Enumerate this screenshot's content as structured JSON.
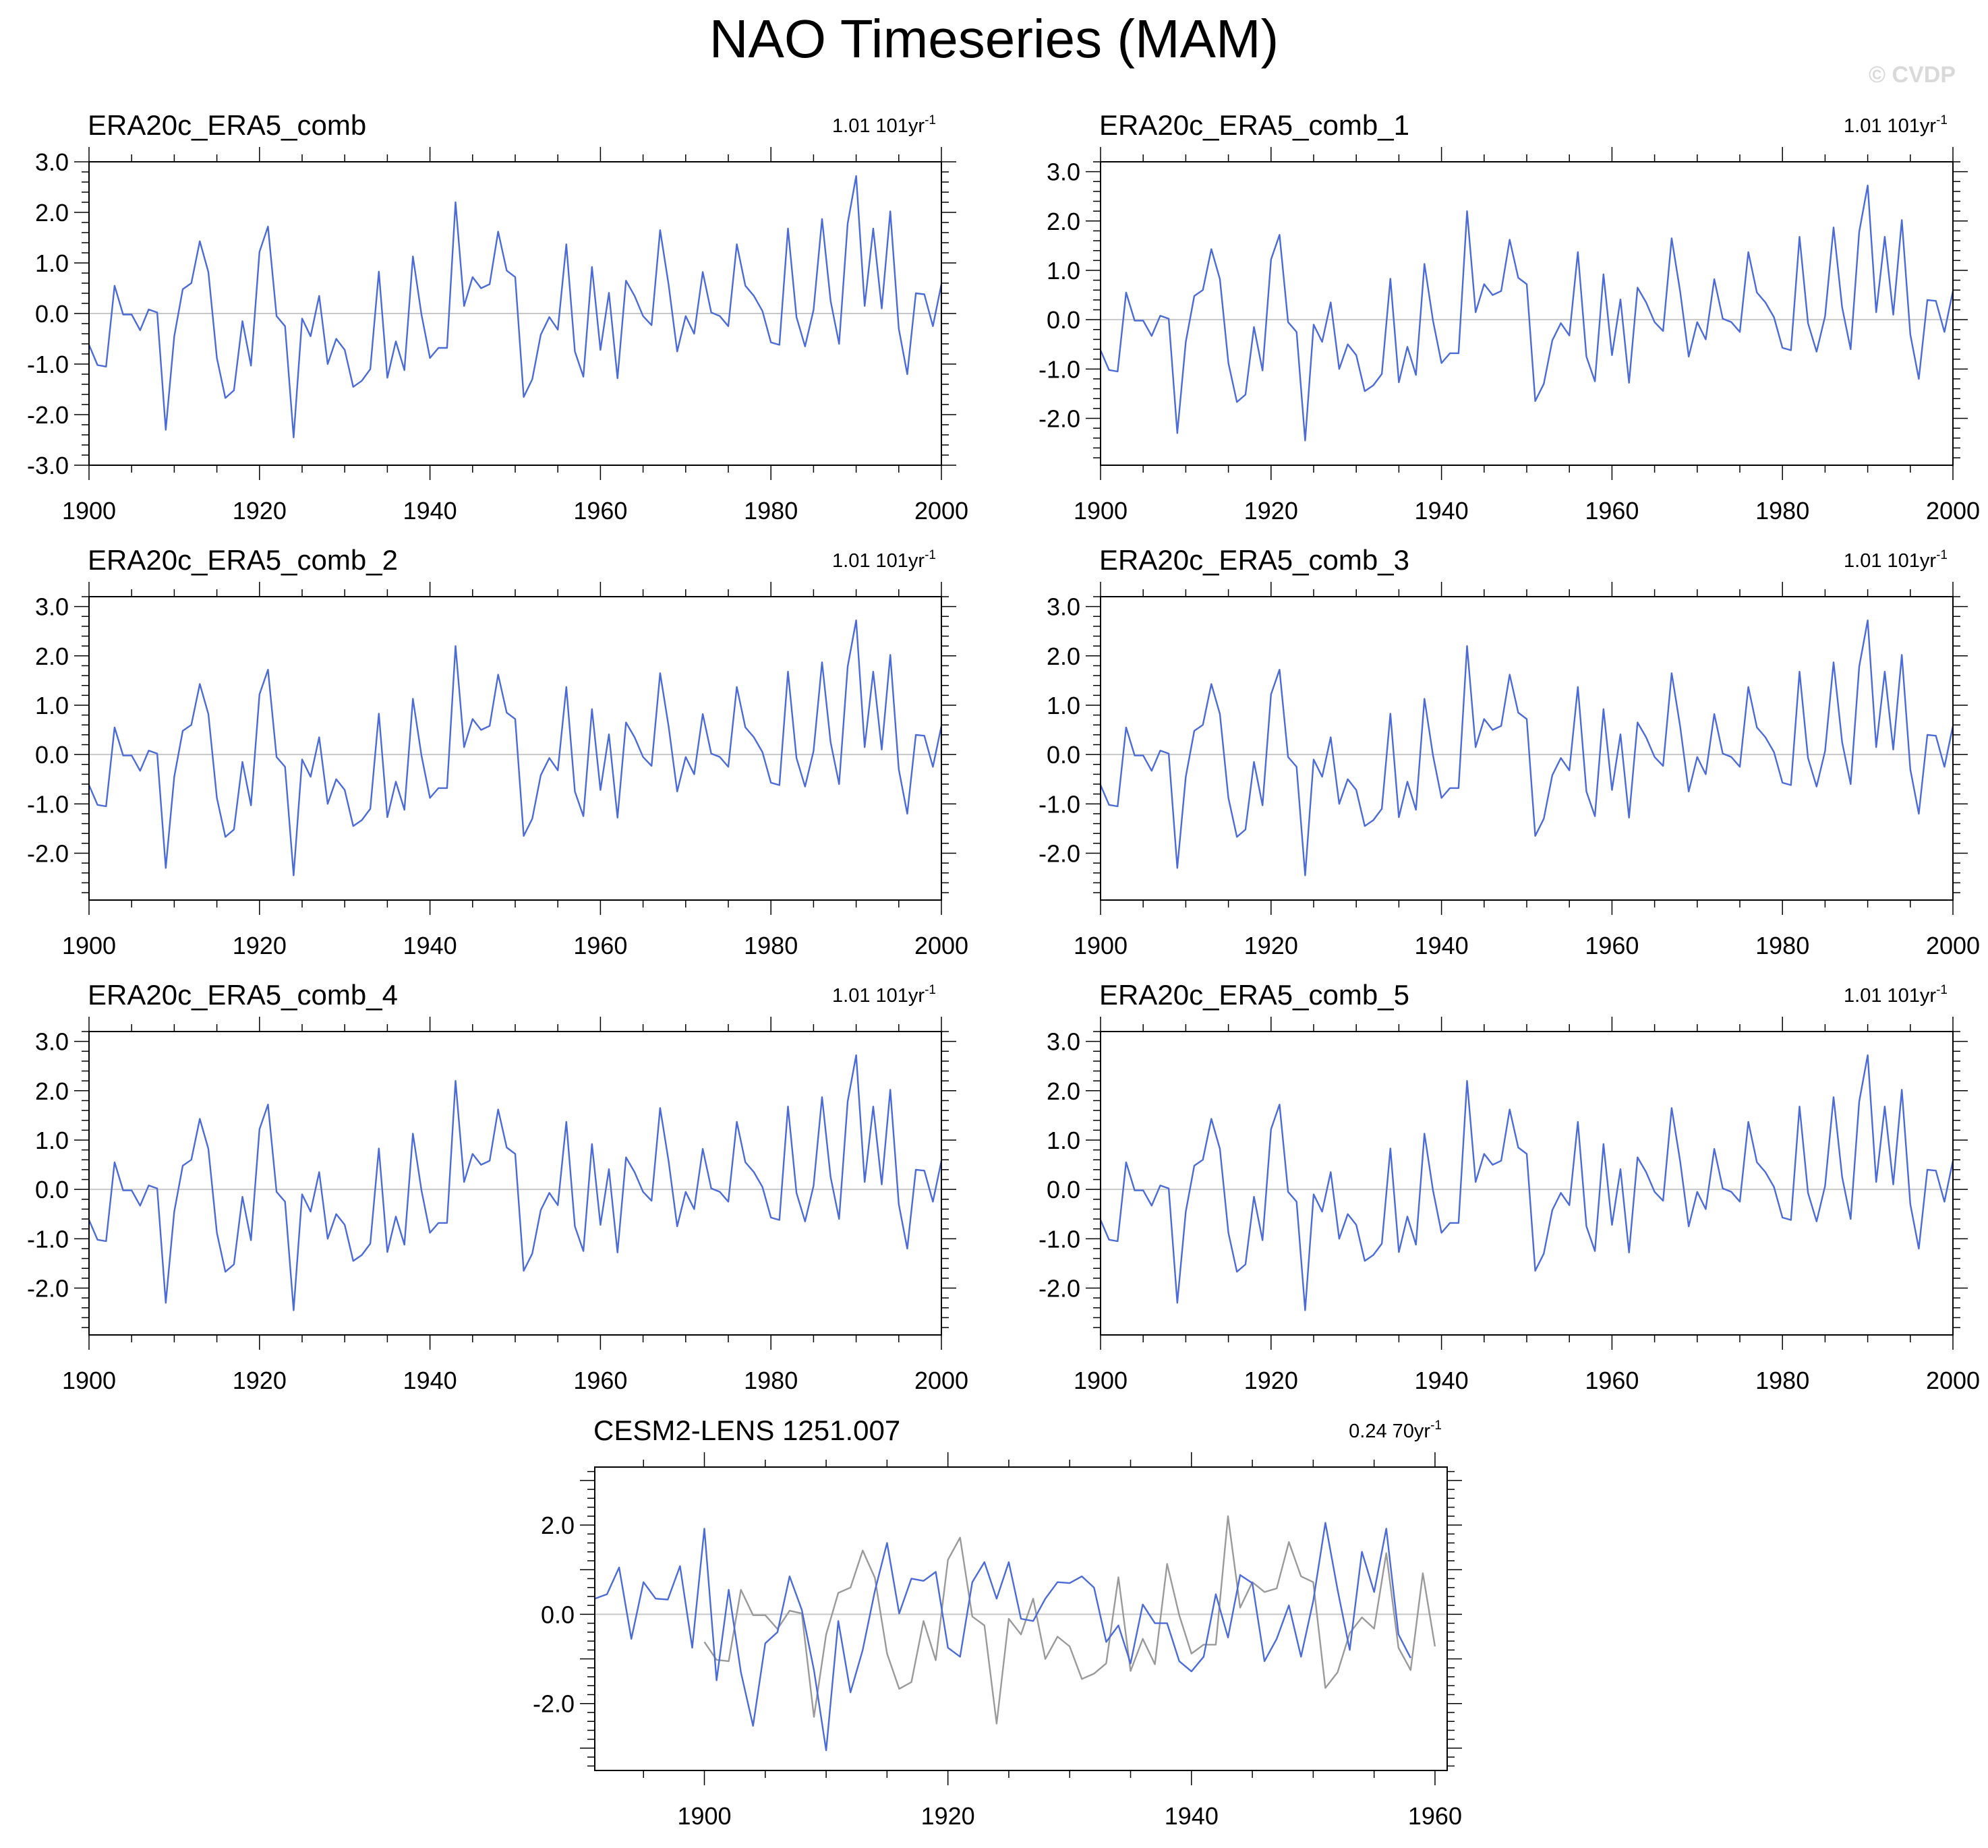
{
  "title": "NAO Timeseries (MAM)",
  "watermark": "© CVDP",
  "colors": {
    "series": "#4a6bd8",
    "reference": "#9a9a9a",
    "zero_line": "#c8c8c8",
    "axis": "#000000"
  },
  "chart_data": [
    {
      "type": "line",
      "title": "ERA20c_ERA5_comb",
      "trend_label": "1.01 101yr",
      "trend_exponent": "-1",
      "xlim": [
        1900,
        2000
      ],
      "ylim": [
        -3.0,
        3.0
      ],
      "xticks": [
        "1900",
        "1920",
        "1940",
        "1960",
        "1980",
        "2000"
      ],
      "yticks": [
        "3.0",
        "2.0",
        "1.0",
        "0.0",
        "-1.0",
        "-2.0",
        "-3.0"
      ],
      "series": [
        {
          "values": [
            -0.62,
            -1.02,
            -1.05,
            0.55,
            -0.02,
            -0.02,
            -0.33,
            0.08,
            0.02,
            -2.3,
            -0.45,
            0.48,
            0.6,
            1.43,
            0.82,
            -0.88,
            -1.67,
            -1.52,
            -0.15,
            -1.03,
            1.22,
            1.72,
            -0.05,
            -0.25,
            -2.45,
            -0.1,
            -0.45,
            0.35,
            -1.0,
            -0.5,
            -0.72,
            -1.45,
            -1.33,
            -1.1,
            0.83,
            -1.27,
            -0.55,
            -1.12,
            1.13,
            -0.02,
            -0.88,
            -0.68,
            -0.68,
            2.2,
            0.15,
            0.72,
            0.5,
            0.58,
            1.62,
            0.85,
            0.72,
            -1.65,
            -1.3,
            -0.42,
            -0.07,
            -0.32,
            1.37,
            -0.75,
            -1.25,
            0.92,
            -0.72,
            0.41,
            -1.28,
            0.65,
            0.35,
            -0.05,
            -0.23,
            1.65,
            0.57,
            -0.75,
            -0.05,
            -0.4,
            0.82,
            0.02,
            -0.05,
            -0.25,
            1.37,
            0.55,
            0.35,
            0.05,
            -0.57,
            -0.62,
            1.68,
            -0.07,
            -0.65,
            0.07,
            1.87,
            0.25,
            -0.6,
            1.78,
            2.72,
            0.15,
            1.68,
            0.1,
            2.02,
            -0.3,
            -1.2,
            0.4,
            0.38,
            -0.25,
            0.58
          ]
        }
      ]
    },
    {
      "type": "line",
      "title": "ERA20c_ERA5_comb_1",
      "trend_label": "1.01 101yr",
      "trend_exponent": "-1",
      "xlim": [
        1900,
        2000
      ],
      "ylim": [
        -3.0,
        3.0
      ],
      "xticks": [
        "1900",
        "1920",
        "1940",
        "1960",
        "1980",
        "2000"
      ],
      "yticks": [
        "3.0",
        "2.0",
        "1.0",
        "0.0",
        "-1.0",
        "-2.0"
      ],
      "series": [
        {
          "values": [
            -0.62,
            -1.02,
            -1.05,
            0.55,
            -0.02,
            -0.02,
            -0.33,
            0.08,
            0.02,
            -2.3,
            -0.45,
            0.48,
            0.6,
            1.43,
            0.82,
            -0.88,
            -1.67,
            -1.52,
            -0.15,
            -1.03,
            1.22,
            1.72,
            -0.05,
            -0.25,
            -2.45,
            -0.1,
            -0.45,
            0.35,
            -1.0,
            -0.5,
            -0.72,
            -1.45,
            -1.33,
            -1.1,
            0.83,
            -1.27,
            -0.55,
            -1.12,
            1.13,
            -0.02,
            -0.88,
            -0.68,
            -0.68,
            2.2,
            0.15,
            0.72,
            0.5,
            0.58,
            1.62,
            0.85,
            0.72,
            -1.65,
            -1.3,
            -0.42,
            -0.07,
            -0.32,
            1.37,
            -0.75,
            -1.25,
            0.92,
            -0.72,
            0.41,
            -1.28,
            0.65,
            0.35,
            -0.05,
            -0.23,
            1.65,
            0.57,
            -0.75,
            -0.05,
            -0.4,
            0.82,
            0.02,
            -0.05,
            -0.25,
            1.37,
            0.55,
            0.35,
            0.05,
            -0.57,
            -0.62,
            1.68,
            -0.07,
            -0.65,
            0.07,
            1.87,
            0.25,
            -0.6,
            1.78,
            2.72,
            0.15,
            1.68,
            0.1,
            2.02,
            -0.3,
            -1.2,
            0.4,
            0.38,
            -0.25,
            0.58
          ]
        }
      ]
    },
    {
      "type": "line",
      "title": "ERA20c_ERA5_comb_2",
      "trend_label": "1.01 101yr",
      "trend_exponent": "-1",
      "xlim": [
        1900,
        2000
      ],
      "ylim": [
        -3.0,
        3.0
      ],
      "xticks": [
        "1900",
        "1920",
        "1940",
        "1960",
        "1980",
        "2000"
      ],
      "yticks": [
        "3.0",
        "2.0",
        "1.0",
        "0.0",
        "-1.0",
        "-2.0"
      ],
      "series": [
        {
          "values": [
            -0.62,
            -1.02,
            -1.05,
            0.55,
            -0.02,
            -0.02,
            -0.33,
            0.08,
            0.02,
            -2.3,
            -0.45,
            0.48,
            0.6,
            1.43,
            0.82,
            -0.88,
            -1.67,
            -1.52,
            -0.15,
            -1.03,
            1.22,
            1.72,
            -0.05,
            -0.25,
            -2.45,
            -0.1,
            -0.45,
            0.35,
            -1.0,
            -0.5,
            -0.72,
            -1.45,
            -1.33,
            -1.1,
            0.83,
            -1.27,
            -0.55,
            -1.12,
            1.13,
            -0.02,
            -0.88,
            -0.68,
            -0.68,
            2.2,
            0.15,
            0.72,
            0.5,
            0.58,
            1.62,
            0.85,
            0.72,
            -1.65,
            -1.3,
            -0.42,
            -0.07,
            -0.32,
            1.37,
            -0.75,
            -1.25,
            0.92,
            -0.72,
            0.41,
            -1.28,
            0.65,
            0.35,
            -0.05,
            -0.23,
            1.65,
            0.57,
            -0.75,
            -0.05,
            -0.4,
            0.82,
            0.02,
            -0.05,
            -0.25,
            1.37,
            0.55,
            0.35,
            0.05,
            -0.57,
            -0.62,
            1.68,
            -0.07,
            -0.65,
            0.07,
            1.87,
            0.25,
            -0.6,
            1.78,
            2.72,
            0.15,
            1.68,
            0.1,
            2.02,
            -0.3,
            -1.2,
            0.4,
            0.38,
            -0.25,
            0.58
          ]
        }
      ]
    },
    {
      "type": "line",
      "title": "ERA20c_ERA5_comb_3",
      "trend_label": "1.01 101yr",
      "trend_exponent": "-1",
      "xlim": [
        1900,
        2000
      ],
      "ylim": [
        -3.0,
        3.0
      ],
      "xticks": [
        "1900",
        "1920",
        "1940",
        "1960",
        "1980",
        "2000"
      ],
      "yticks": [
        "3.0",
        "2.0",
        "1.0",
        "0.0",
        "-1.0",
        "-2.0"
      ],
      "series": [
        {
          "values": [
            -0.62,
            -1.02,
            -1.05,
            0.55,
            -0.02,
            -0.02,
            -0.33,
            0.08,
            0.02,
            -2.3,
            -0.45,
            0.48,
            0.6,
            1.43,
            0.82,
            -0.88,
            -1.67,
            -1.52,
            -0.15,
            -1.03,
            1.22,
            1.72,
            -0.05,
            -0.25,
            -2.45,
            -0.1,
            -0.45,
            0.35,
            -1.0,
            -0.5,
            -0.72,
            -1.45,
            -1.33,
            -1.1,
            0.83,
            -1.27,
            -0.55,
            -1.12,
            1.13,
            -0.02,
            -0.88,
            -0.68,
            -0.68,
            2.2,
            0.15,
            0.72,
            0.5,
            0.58,
            1.62,
            0.85,
            0.72,
            -1.65,
            -1.3,
            -0.42,
            -0.07,
            -0.32,
            1.37,
            -0.75,
            -1.25,
            0.92,
            -0.72,
            0.41,
            -1.28,
            0.65,
            0.35,
            -0.05,
            -0.23,
            1.65,
            0.57,
            -0.75,
            -0.05,
            -0.4,
            0.82,
            0.02,
            -0.05,
            -0.25,
            1.37,
            0.55,
            0.35,
            0.05,
            -0.57,
            -0.62,
            1.68,
            -0.07,
            -0.65,
            0.07,
            1.87,
            0.25,
            -0.6,
            1.78,
            2.72,
            0.15,
            1.68,
            0.1,
            2.02,
            -0.3,
            -1.2,
            0.4,
            0.38,
            -0.25,
            0.58
          ]
        }
      ]
    },
    {
      "type": "line",
      "title": "ERA20c_ERA5_comb_4",
      "trend_label": "1.01 101yr",
      "trend_exponent": "-1",
      "xlim": [
        1900,
        2000
      ],
      "ylim": [
        -3.0,
        3.0
      ],
      "xticks": [
        "1900",
        "1920",
        "1940",
        "1960",
        "1980",
        "2000"
      ],
      "yticks": [
        "3.0",
        "2.0",
        "1.0",
        "0.0",
        "-1.0",
        "-2.0"
      ],
      "series": [
        {
          "values": [
            -0.62,
            -1.02,
            -1.05,
            0.55,
            -0.02,
            -0.02,
            -0.33,
            0.08,
            0.02,
            -2.3,
            -0.45,
            0.48,
            0.6,
            1.43,
            0.82,
            -0.88,
            -1.67,
            -1.52,
            -0.15,
            -1.03,
            1.22,
            1.72,
            -0.05,
            -0.25,
            -2.45,
            -0.1,
            -0.45,
            0.35,
            -1.0,
            -0.5,
            -0.72,
            -1.45,
            -1.33,
            -1.1,
            0.83,
            -1.27,
            -0.55,
            -1.12,
            1.13,
            -0.02,
            -0.88,
            -0.68,
            -0.68,
            2.2,
            0.15,
            0.72,
            0.5,
            0.58,
            1.62,
            0.85,
            0.72,
            -1.65,
            -1.3,
            -0.42,
            -0.07,
            -0.32,
            1.37,
            -0.75,
            -1.25,
            0.92,
            -0.72,
            0.41,
            -1.28,
            0.65,
            0.35,
            -0.05,
            -0.23,
            1.65,
            0.57,
            -0.75,
            -0.05,
            -0.4,
            0.82,
            0.02,
            -0.05,
            -0.25,
            1.37,
            0.55,
            0.35,
            0.05,
            -0.57,
            -0.62,
            1.68,
            -0.07,
            -0.65,
            0.07,
            1.87,
            0.25,
            -0.6,
            1.78,
            2.72,
            0.15,
            1.68,
            0.1,
            2.02,
            -0.3,
            -1.2,
            0.4,
            0.38,
            -0.25,
            0.58
          ]
        }
      ]
    },
    {
      "type": "line",
      "title": "ERA20c_ERA5_comb_5",
      "trend_label": "1.01 101yr",
      "trend_exponent": "-1",
      "xlim": [
        1900,
        2000
      ],
      "ylim": [
        -3.0,
        3.0
      ],
      "xticks": [
        "1900",
        "1920",
        "1940",
        "1960",
        "1980",
        "2000"
      ],
      "yticks": [
        "3.0",
        "2.0",
        "1.0",
        "0.0",
        "-1.0",
        "-2.0"
      ],
      "series": [
        {
          "values": [
            -0.62,
            -1.02,
            -1.05,
            0.55,
            -0.02,
            -0.02,
            -0.33,
            0.08,
            0.02,
            -2.3,
            -0.45,
            0.48,
            0.6,
            1.43,
            0.82,
            -0.88,
            -1.67,
            -1.52,
            -0.15,
            -1.03,
            1.22,
            1.72,
            -0.05,
            -0.25,
            -2.45,
            -0.1,
            -0.45,
            0.35,
            -1.0,
            -0.5,
            -0.72,
            -1.45,
            -1.33,
            -1.1,
            0.83,
            -1.27,
            -0.55,
            -1.12,
            1.13,
            -0.02,
            -0.88,
            -0.68,
            -0.68,
            2.2,
            0.15,
            0.72,
            0.5,
            0.58,
            1.62,
            0.85,
            0.72,
            -1.65,
            -1.3,
            -0.42,
            -0.07,
            -0.32,
            1.37,
            -0.75,
            -1.25,
            0.92,
            -0.72,
            0.41,
            -1.28,
            0.65,
            0.35,
            -0.05,
            -0.23,
            1.65,
            0.57,
            -0.75,
            -0.05,
            -0.4,
            0.82,
            0.02,
            -0.05,
            -0.25,
            1.37,
            0.55,
            0.35,
            0.05,
            -0.57,
            -0.62,
            1.68,
            -0.07,
            -0.65,
            0.07,
            1.87,
            0.25,
            -0.6,
            1.78,
            2.72,
            0.15,
            1.68,
            0.1,
            2.02,
            -0.3,
            -1.2,
            0.4,
            0.38,
            -0.25,
            0.58
          ]
        }
      ]
    },
    {
      "type": "line",
      "title": "CESM2-LENS 1251.007",
      "trend_label": "0.24 70yr",
      "trend_exponent": "-1",
      "xlim": [
        1891,
        1961
      ],
      "ylim": [
        -3.5,
        3.3
      ],
      "xticks": [
        "1900",
        "1920",
        "1940",
        "1960"
      ],
      "yticks": [
        "2.0",
        "0.0",
        "-2.0"
      ],
      "series": [
        {
          "x_start": 1891,
          "values": [
            0.35,
            0.45,
            1.05,
            -0.55,
            0.72,
            0.35,
            0.33,
            1.08,
            -0.75,
            1.92,
            -1.48,
            0.55,
            -1.3,
            -2.5,
            -0.65,
            -0.4,
            0.85,
            0.1,
            -1.25,
            -3.05,
            -0.15,
            -1.75,
            -0.8,
            0.52,
            1.6,
            0.02,
            0.8,
            0.75,
            0.95,
            -0.75,
            -0.95,
            0.72,
            1.17,
            0.35,
            1.17,
            -0.1,
            -0.15,
            0.35,
            0.72,
            0.7,
            0.85,
            0.6,
            -0.62,
            -0.25,
            -1.1,
            0.22,
            -0.2,
            -0.2,
            -1.05,
            -1.28,
            -0.95,
            0.45,
            -0.52,
            0.88,
            0.7,
            -1.05,
            -0.55,
            0.2,
            -0.95,
            0.3,
            2.05,
            0.55,
            -0.8,
            1.4,
            0.5,
            1.92,
            -0.45,
            -0.98
          ]
        },
        {
          "x_start": 1900,
          "values": [
            -0.62,
            -1.02,
            -1.05,
            0.55,
            -0.02,
            -0.02,
            -0.33,
            0.08,
            0.02,
            -2.3,
            -0.45,
            0.48,
            0.6,
            1.43,
            0.82,
            -0.88,
            -1.67,
            -1.52,
            -0.15,
            -1.03,
            1.22,
            1.72,
            -0.05,
            -0.25,
            -2.45,
            -0.1,
            -0.45,
            0.35,
            -1.0,
            -0.5,
            -0.72,
            -1.45,
            -1.33,
            -1.1,
            0.83,
            -1.27,
            -0.55,
            -1.12,
            1.13,
            -0.02,
            -0.88,
            -0.68,
            -0.68,
            2.2,
            0.15,
            0.72,
            0.5,
            0.58,
            1.62,
            0.85,
            0.72,
            -1.65,
            -1.3,
            -0.42,
            -0.07,
            -0.32,
            1.37,
            -0.75,
            -1.25,
            0.92,
            -0.72
          ]
        }
      ]
    }
  ]
}
